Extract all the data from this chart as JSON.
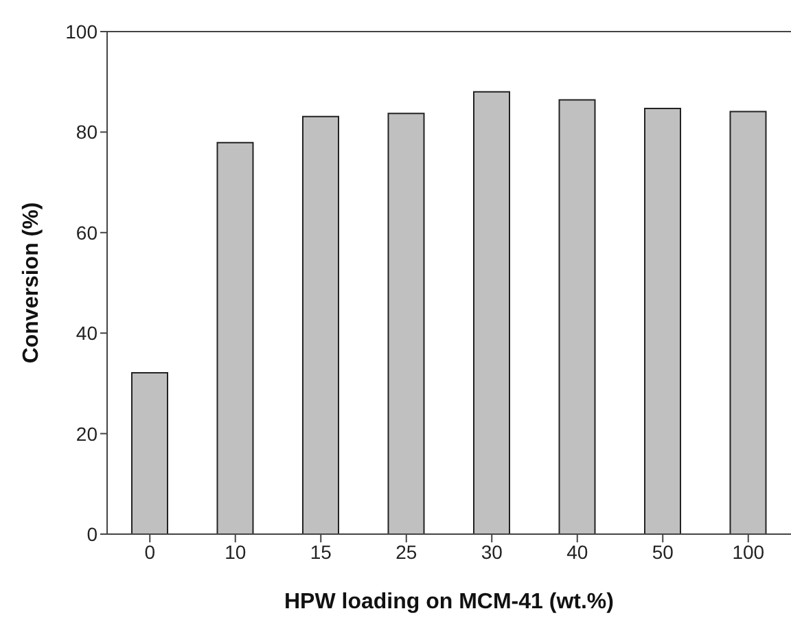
{
  "chart_data": {
    "type": "bar",
    "xlabel": "HPW loading on MCM-41 (wt.%)",
    "ylabel": "Conversion (%)",
    "categories": [
      "0",
      "10",
      "15",
      "25",
      "30",
      "40",
      "50",
      "100"
    ],
    "values": [
      32.1,
      77.9,
      83.1,
      83.7,
      88.0,
      86.4,
      84.7,
      84.1
    ],
    "color": "#c0c0c0",
    "ylim": [
      0,
      100
    ],
    "yticks": [
      0,
      20,
      40,
      60,
      80,
      100
    ],
    "grid": false
  }
}
